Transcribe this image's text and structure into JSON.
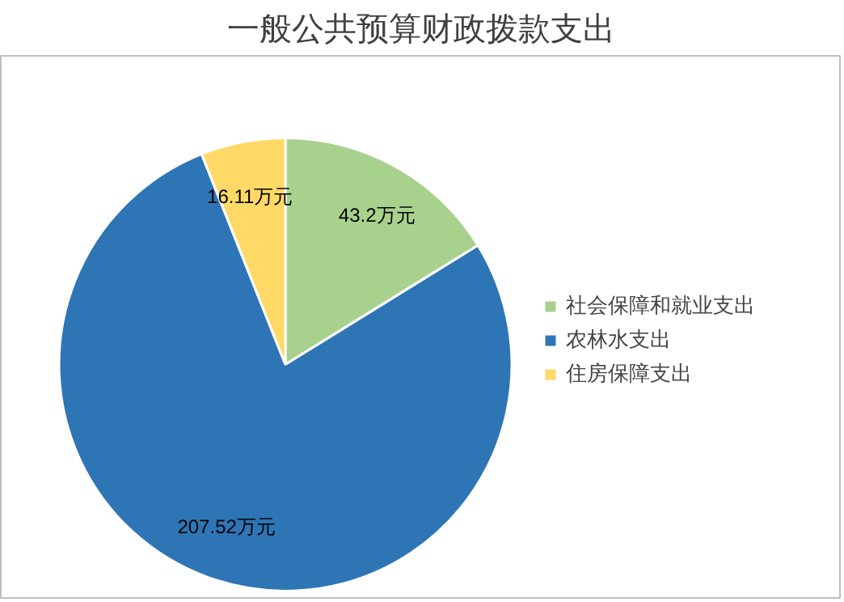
{
  "chart_data": {
    "type": "pie",
    "title": "一般公共预算财政拨款支出",
    "categories": [
      "社会保障和就业支出",
      "农林水支出",
      "住房保障支出"
    ],
    "values": [
      43.2,
      207.52,
      16.11
    ],
    "colors": [
      "#a9d18e",
      "#2e75b6",
      "#ffd966"
    ],
    "value_labels": [
      "43.2万元",
      "207.52万元",
      "16.11万元"
    ],
    "legend": "right"
  }
}
